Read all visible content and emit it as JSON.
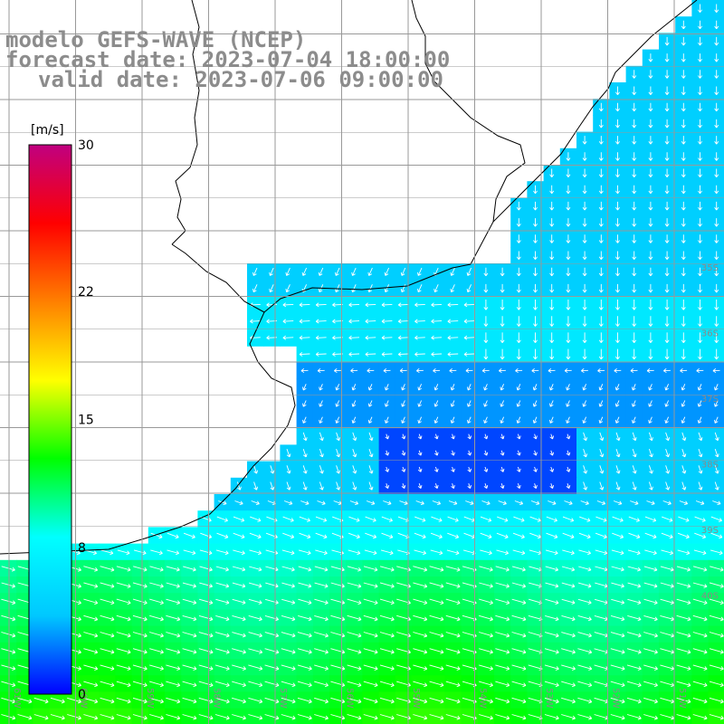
{
  "title": {
    "model": "modelo GEFS-WAVE (NCEP)",
    "forecast": "forecast date: 2023-07-04 18:00:00",
    "valid": "valid date: 2023-07-06 09:00:00"
  },
  "colorbar": {
    "unit": "[m/s]",
    "ticks": [
      "30",
      "22",
      "15",
      "8",
      "0"
    ],
    "tick_values": [
      30,
      22,
      15,
      8,
      0
    ],
    "min": 0,
    "max": 30,
    "colors": [
      "#0000ff",
      "#00c8ff",
      "#00ffff",
      "#00ff00",
      "#ffff00",
      "#ff8000",
      "#ff0000",
      "#c00080"
    ]
  },
  "graticule": {
    "lat_labels": [
      "35S",
      "36S",
      "37S",
      "38S",
      "39S",
      "40S"
    ],
    "lon_labels": [
      "61W",
      "60W",
      "59W",
      "58W",
      "57W",
      "56W",
      "55W",
      "54W",
      "53W",
      "52W",
      "51W"
    ]
  },
  "colors": {
    "land": "#ffffff",
    "coast": "#000000",
    "grid": "#999999",
    "arrow": "#ffffff",
    "title_text": "#8c8c8c"
  }
}
